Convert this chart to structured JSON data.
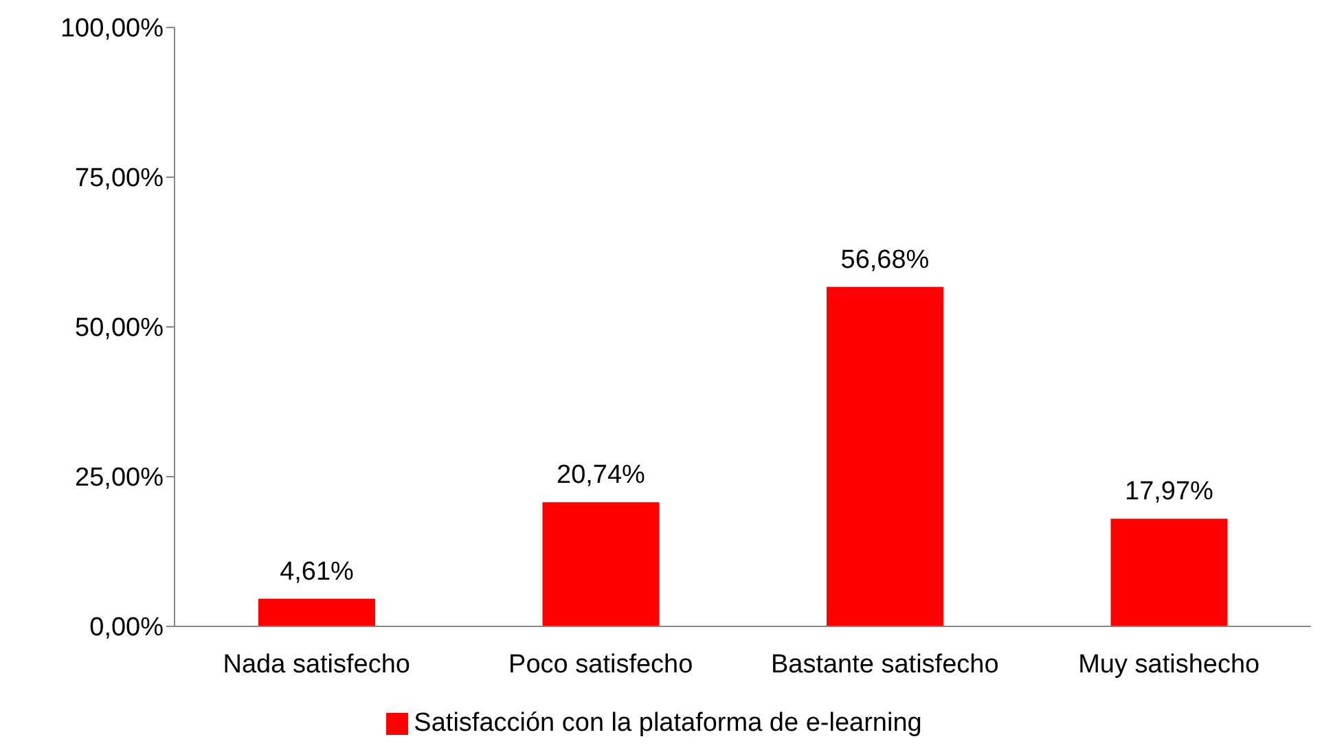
{
  "chart_data": {
    "type": "bar",
    "categories": [
      "Nada satisfecho",
      "Poco satisfecho",
      "Bastante satisfecho",
      "Muy satishecho"
    ],
    "series": [
      {
        "name": "Satisfacción con la plataforma de e-learning",
        "color": "#ff0000",
        "values": [
          4.61,
          20.74,
          56.68,
          17.97
        ],
        "value_labels": [
          "4,61%",
          "20,74%",
          "56,68%",
          "17,97%"
        ]
      }
    ],
    "ylim": [
      0,
      100
    ],
    "yticks": [
      {
        "value": 0,
        "label": "0,00%"
      },
      {
        "value": 25,
        "label": "25,00%"
      },
      {
        "value": 50,
        "label": "50,00%"
      },
      {
        "value": 75,
        "label": "75,00%"
      },
      {
        "value": 100,
        "label": "100,00%"
      }
    ],
    "grid": false,
    "legend": "bottom"
  }
}
